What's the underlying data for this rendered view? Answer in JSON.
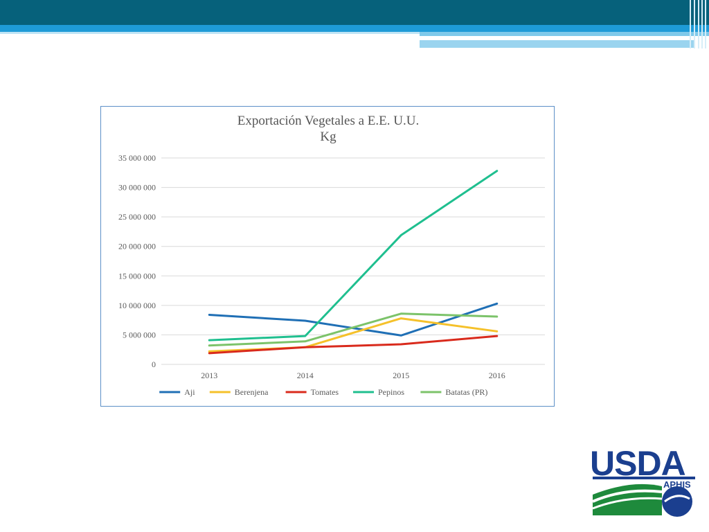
{
  "slide": {
    "band_color": "#06617b",
    "stripe_color": "#1e9bd7"
  },
  "chart_data": {
    "type": "line",
    "title": "Exportación Vegetales a E.E. U.U.",
    "subtitle": "Kg",
    "categories": [
      "2013",
      "2014",
      "2015",
      "2016"
    ],
    "ylim": [
      0,
      35000000
    ],
    "yticks": [
      0,
      5000000,
      10000000,
      15000000,
      20000000,
      25000000,
      30000000,
      35000000
    ],
    "ytick_labels": [
      "0",
      "5 000 000",
      "10 000 000",
      "15 000 000",
      "20 000 000",
      "25 000 000",
      "30 000 000",
      "35 000 000"
    ],
    "grid": true,
    "legend_position": "bottom",
    "series": [
      {
        "name": "Aji",
        "color": "#1f6fb5",
        "values": [
          8400000,
          7400000,
          4900000,
          10300000
        ]
      },
      {
        "name": "Berenjena",
        "color": "#f5c12a",
        "values": [
          2200000,
          2900000,
          7800000,
          5600000
        ]
      },
      {
        "name": "Tomates",
        "color": "#d92a1c",
        "values": [
          1900000,
          2900000,
          3400000,
          4800000
        ]
      },
      {
        "name": "Pepinos",
        "color": "#1fbf8f",
        "values": [
          4100000,
          4800000,
          21900000,
          32800000
        ]
      },
      {
        "name": "Batatas (PR)",
        "color": "#7cc36a",
        "values": [
          3200000,
          3900000,
          8600000,
          8100000
        ]
      }
    ]
  },
  "logo": {
    "text": "USDA",
    "subtext": "APHIS",
    "blue": "#1b3f8f",
    "green": "#1e8a3c"
  }
}
